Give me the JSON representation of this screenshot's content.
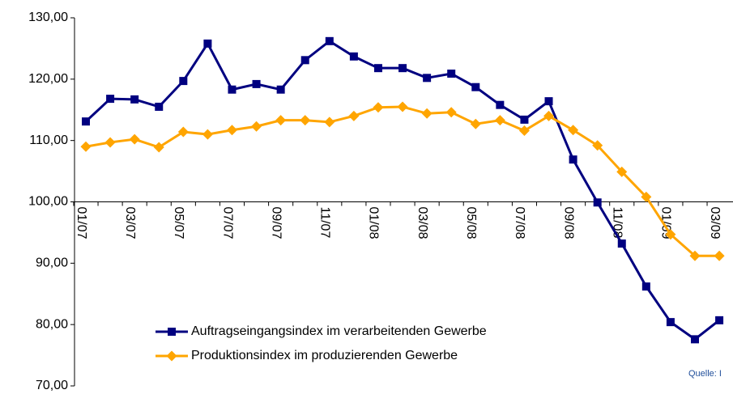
{
  "chart_data": {
    "type": "line",
    "categories": [
      "01/07",
      null,
      "03/07",
      null,
      "05/07",
      null,
      "07/07",
      null,
      "09/07",
      null,
      "11/07",
      null,
      "01/08",
      null,
      "03/08",
      null,
      "05/08",
      null,
      "07/08",
      null,
      "09/08",
      null,
      "11/08",
      null,
      "01/09",
      null,
      "03/09"
    ],
    "series": [
      {
        "name": "Auftragseingangsindex im verarbeitenden Gewerbe",
        "color": "#000080",
        "marker": "square",
        "values": [
          113.1,
          116.8,
          116.7,
          115.5,
          119.7,
          125.8,
          118.3,
          119.2,
          118.3,
          123.1,
          126.2,
          123.7,
          121.8,
          121.8,
          120.2,
          120.9,
          118.7,
          115.8,
          113.4,
          116.4,
          106.9,
          99.9,
          93.2,
          86.2,
          80.4,
          77.6,
          80.7
        ]
      },
      {
        "name": "Produktionsindex im produzierenden Gewerbe",
        "color": "#ffa500",
        "marker": "diamond",
        "values": [
          109.0,
          109.7,
          110.2,
          108.9,
          111.4,
          111.0,
          111.7,
          112.3,
          113.3,
          113.3,
          113.0,
          114.0,
          115.4,
          115.5,
          114.4,
          114.6,
          112.7,
          113.3,
          111.6,
          114.0,
          111.7,
          109.2,
          104.9,
          100.8,
          94.7,
          91.2,
          91.2
        ]
      }
    ],
    "ylim": [
      70,
      130
    ],
    "yticks": [
      {
        "value": 70,
        "label": "70,00"
      },
      {
        "value": 80,
        "label": "80,00"
      },
      {
        "value": 90,
        "label": "90,00"
      },
      {
        "value": 100,
        "label": "100,00"
      },
      {
        "value": 110,
        "label": "110,00"
      },
      {
        "value": 120,
        "label": "120,00"
      },
      {
        "value": 130,
        "label": "130,00"
      }
    ],
    "x_axis_crosses_at": 100,
    "grid": false,
    "annotation": "Quelle: I"
  }
}
